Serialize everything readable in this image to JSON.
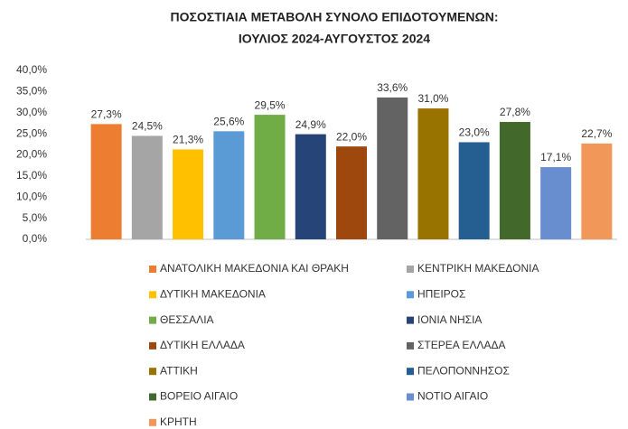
{
  "chart_data": {
    "type": "bar",
    "title": [
      "ΠΟΣΟΣΤΙΑΙΑ ΜΕΤΑΒΟΛΗ ΣΥΝΟΛΟ ΕΠΙΔΟΤΟΥΜΕΝΩΝ:",
      "ΙΟΥΛΙΟΣ 2024-ΑΥΓΟΥΣΤΟΣ 2024"
    ],
    "categories": [
      "ΑΝΑΤΟΛΙΚΗ ΜΑΚΕΔΟΝΙΑ ΚΑΙ ΘΡΑΚΗ",
      "ΚΕΝΤΡΙΚΗ ΜΑΚΕΔΟΝΙΑ",
      "ΔΥΤΙΚΗ ΜΑΚΕΔΟΝΙΑ",
      "ΗΠΕΙΡΟΣ",
      "ΘΕΣΣΑΛΙΑ",
      "ΙΟΝΙΑ ΝΗΣΙΑ",
      "ΔΥΤΙΚΗ ΕΛΛΑΔΑ",
      "ΣΤΕΡΕΑ ΕΛΛΑΔΑ",
      "ΑΤΤΙΚΗ",
      "ΠΕΛΟΠΟΝΝΗΣΟΣ",
      "ΒΟΡΕΙΟ ΑΙΓΑΙΟ",
      "ΝΟΤΙΟ ΑΙΓΑΙΟ",
      "ΚΡΗΤΗ"
    ],
    "values": [
      27.3,
      24.5,
      21.3,
      25.6,
      29.5,
      24.9,
      22.0,
      33.6,
      31.0,
      23.0,
      27.8,
      17.1,
      22.7
    ],
    "value_labels": [
      "27,3%",
      "24,5%",
      "21,3%",
      "25,6%",
      "29,5%",
      "24,9%",
      "22,0%",
      "33,6%",
      "31,0%",
      "23,0%",
      "27,8%",
      "17,1%",
      "22,7%"
    ],
    "colors": [
      "#ED7D31",
      "#A5A5A5",
      "#FFC000",
      "#5B9BD5",
      "#70AD47",
      "#264478",
      "#9E480E",
      "#636363",
      "#997300",
      "#255E91",
      "#43682B",
      "#698ED0",
      "#F1975A"
    ],
    "ylim": [
      0,
      40
    ],
    "yticks": [
      {
        "value": 0,
        "label": "0,0%"
      },
      {
        "value": 5,
        "label": "5,0%"
      },
      {
        "value": 10,
        "label": "10,0%"
      },
      {
        "value": 15,
        "label": "15,0%"
      },
      {
        "value": 20,
        "label": "20,0%"
      },
      {
        "value": 25,
        "label": "25,0%"
      },
      {
        "value": 30,
        "label": "30,0%"
      },
      {
        "value": 35,
        "label": "35,0%"
      },
      {
        "value": 40,
        "label": "40,0%"
      }
    ],
    "grid": false,
    "legend": "bottom"
  }
}
